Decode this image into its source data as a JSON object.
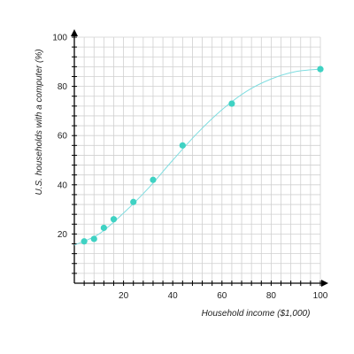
{
  "chart_data": {
    "type": "scatter",
    "title": "",
    "xlabel": "Household income ($1,000)",
    "ylabel": "U.S. households with a computer (%)",
    "xlim": [
      0,
      100
    ],
    "ylim": [
      0,
      100
    ],
    "x_ticks": [
      20,
      40,
      60,
      80,
      100
    ],
    "y_ticks": [
      20,
      40,
      60,
      80,
      100
    ],
    "grid": true,
    "points": [
      {
        "x": 4,
        "y": 17
      },
      {
        "x": 8,
        "y": 18
      },
      {
        "x": 12,
        "y": 22.5
      },
      {
        "x": 16,
        "y": 26
      },
      {
        "x": 24,
        "y": 33
      },
      {
        "x": 32,
        "y": 42
      },
      {
        "x": 44,
        "y": 56
      },
      {
        "x": 64,
        "y": 73
      },
      {
        "x": 100,
        "y": 87
      }
    ],
    "curve": [
      {
        "x": 0,
        "y": 15.5
      },
      {
        "x": 10,
        "y": 20
      },
      {
        "x": 20,
        "y": 28.5
      },
      {
        "x": 30,
        "y": 38.5
      },
      {
        "x": 40,
        "y": 50
      },
      {
        "x": 50,
        "y": 61
      },
      {
        "x": 60,
        "y": 70.5
      },
      {
        "x": 70,
        "y": 78
      },
      {
        "x": 80,
        "y": 83
      },
      {
        "x": 90,
        "y": 86
      },
      {
        "x": 100,
        "y": 87
      }
    ],
    "colors": {
      "points": "#3fd2c3",
      "curve": "#7fdde0",
      "grid": "#d0d0d0",
      "axis": "#000000"
    }
  }
}
